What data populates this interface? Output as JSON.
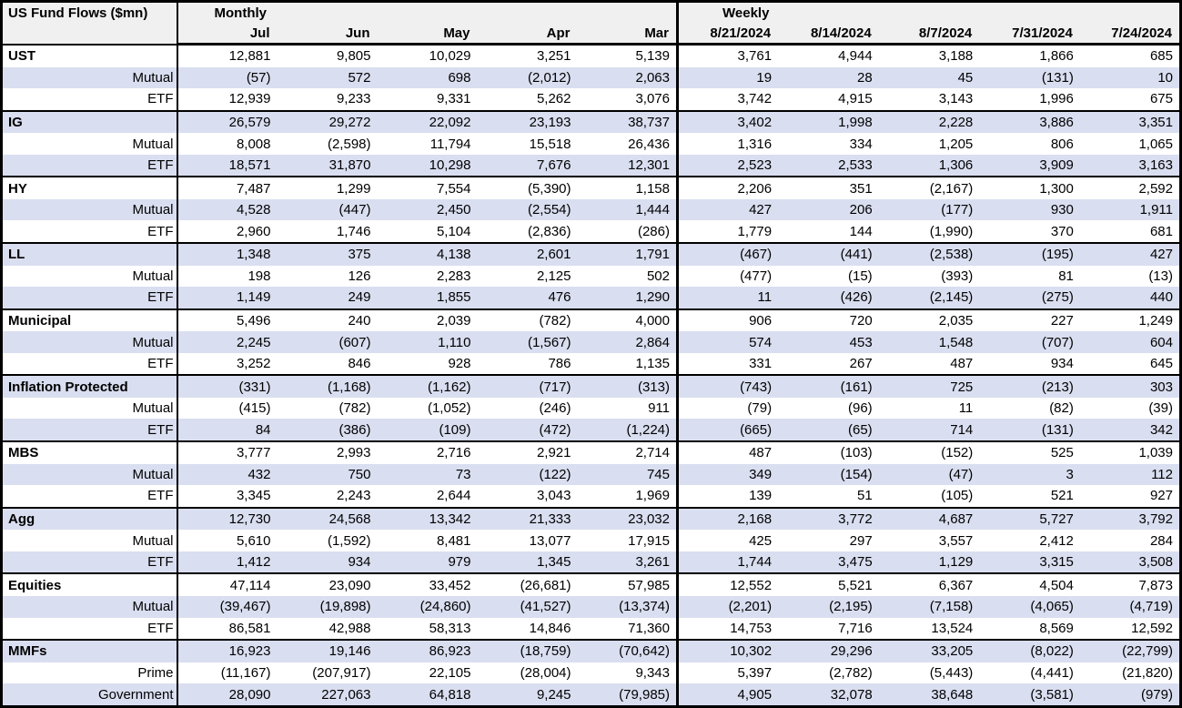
{
  "title": "US Fund Flows ($mn)",
  "colors": {
    "row_shade": "#d9def0",
    "header_bg": "#f0f0f0",
    "border": "#000000"
  },
  "header": {
    "monthly_label": "Monthly",
    "weekly_label": "Weekly",
    "monthly_columns": [
      "Jul",
      "Jun",
      "May",
      "Apr",
      "Mar"
    ],
    "weekly_columns": [
      "8/21/2024",
      "8/14/2024",
      "8/7/2024",
      "7/31/2024",
      "7/24/2024"
    ]
  },
  "chart_data": {
    "type": "table",
    "title": "US Fund Flows ($mn)",
    "column_groups": [
      "Monthly",
      "Weekly"
    ],
    "columns": [
      "Jul",
      "Jun",
      "May",
      "Apr",
      "Mar",
      "8/21/2024",
      "8/14/2024",
      "8/7/2024",
      "7/31/2024",
      "7/24/2024"
    ]
  },
  "groups": [
    {
      "name": "UST",
      "monthly": [
        "12,881",
        "9,805",
        "10,029",
        "3,251",
        "5,139"
      ],
      "weekly": [
        "3,761",
        "4,944",
        "3,188",
        "1,866",
        "685"
      ],
      "subrows": [
        {
          "label": "Mutual",
          "monthly": [
            "(57)",
            "572",
            "698",
            "(2,012)",
            "2,063"
          ],
          "weekly": [
            "19",
            "28",
            "45",
            "(131)",
            "10"
          ]
        },
        {
          "label": "ETF",
          "monthly": [
            "12,939",
            "9,233",
            "9,331",
            "5,262",
            "3,076"
          ],
          "weekly": [
            "3,742",
            "4,915",
            "3,143",
            "1,996",
            "675"
          ]
        }
      ]
    },
    {
      "name": "IG",
      "monthly": [
        "26,579",
        "29,272",
        "22,092",
        "23,193",
        "38,737"
      ],
      "weekly": [
        "3,402",
        "1,998",
        "2,228",
        "3,886",
        "3,351"
      ],
      "subrows": [
        {
          "label": "Mutual",
          "monthly": [
            "8,008",
            "(2,598)",
            "11,794",
            "15,518",
            "26,436"
          ],
          "weekly": [
            "1,316",
            "334",
            "1,205",
            "806",
            "1,065"
          ]
        },
        {
          "label": "ETF",
          "monthly": [
            "18,571",
            "31,870",
            "10,298",
            "7,676",
            "12,301"
          ],
          "weekly": [
            "2,523",
            "2,533",
            "1,306",
            "3,909",
            "3,163"
          ]
        }
      ]
    },
    {
      "name": "HY",
      "monthly": [
        "7,487",
        "1,299",
        "7,554",
        "(5,390)",
        "1,158"
      ],
      "weekly": [
        "2,206",
        "351",
        "(2,167)",
        "1,300",
        "2,592"
      ],
      "subrows": [
        {
          "label": "Mutual",
          "monthly": [
            "4,528",
            "(447)",
            "2,450",
            "(2,554)",
            "1,444"
          ],
          "weekly": [
            "427",
            "206",
            "(177)",
            "930",
            "1,911"
          ]
        },
        {
          "label": "ETF",
          "monthly": [
            "2,960",
            "1,746",
            "5,104",
            "(2,836)",
            "(286)"
          ],
          "weekly": [
            "1,779",
            "144",
            "(1,990)",
            "370",
            "681"
          ]
        }
      ]
    },
    {
      "name": "LL",
      "monthly": [
        "1,348",
        "375",
        "4,138",
        "2,601",
        "1,791"
      ],
      "weekly": [
        "(467)",
        "(441)",
        "(2,538)",
        "(195)",
        "427"
      ],
      "subrows": [
        {
          "label": "Mutual",
          "monthly": [
            "198",
            "126",
            "2,283",
            "2,125",
            "502"
          ],
          "weekly": [
            "(477)",
            "(15)",
            "(393)",
            "81",
            "(13)"
          ]
        },
        {
          "label": "ETF",
          "monthly": [
            "1,149",
            "249",
            "1,855",
            "476",
            "1,290"
          ],
          "weekly": [
            "11",
            "(426)",
            "(2,145)",
            "(275)",
            "440"
          ]
        }
      ]
    },
    {
      "name": "Municipal",
      "monthly": [
        "5,496",
        "240",
        "2,039",
        "(782)",
        "4,000"
      ],
      "weekly": [
        "906",
        "720",
        "2,035",
        "227",
        "1,249"
      ],
      "subrows": [
        {
          "label": "Mutual",
          "monthly": [
            "2,245",
            "(607)",
            "1,110",
            "(1,567)",
            "2,864"
          ],
          "weekly": [
            "574",
            "453",
            "1,548",
            "(707)",
            "604"
          ]
        },
        {
          "label": "ETF",
          "monthly": [
            "3,252",
            "846",
            "928",
            "786",
            "1,135"
          ],
          "weekly": [
            "331",
            "267",
            "487",
            "934",
            "645"
          ]
        }
      ]
    },
    {
      "name": "Inflation Protected",
      "monthly": [
        "(331)",
        "(1,168)",
        "(1,162)",
        "(717)",
        "(313)"
      ],
      "weekly": [
        "(743)",
        "(161)",
        "725",
        "(213)",
        "303"
      ],
      "subrows": [
        {
          "label": "Mutual",
          "monthly": [
            "(415)",
            "(782)",
            "(1,052)",
            "(246)",
            "911"
          ],
          "weekly": [
            "(79)",
            "(96)",
            "11",
            "(82)",
            "(39)"
          ]
        },
        {
          "label": "ETF",
          "monthly": [
            "84",
            "(386)",
            "(109)",
            "(472)",
            "(1,224)"
          ],
          "weekly": [
            "(665)",
            "(65)",
            "714",
            "(131)",
            "342"
          ]
        }
      ]
    },
    {
      "name": "MBS",
      "monthly": [
        "3,777",
        "2,993",
        "2,716",
        "2,921",
        "2,714"
      ],
      "weekly": [
        "487",
        "(103)",
        "(152)",
        "525",
        "1,039"
      ],
      "subrows": [
        {
          "label": "Mutual",
          "monthly": [
            "432",
            "750",
            "73",
            "(122)",
            "745"
          ],
          "weekly": [
            "349",
            "(154)",
            "(47)",
            "3",
            "112"
          ]
        },
        {
          "label": "ETF",
          "monthly": [
            "3,345",
            "2,243",
            "2,644",
            "3,043",
            "1,969"
          ],
          "weekly": [
            "139",
            "51",
            "(105)",
            "521",
            "927"
          ]
        }
      ]
    },
    {
      "name": "Agg",
      "monthly": [
        "12,730",
        "24,568",
        "13,342",
        "21,333",
        "23,032"
      ],
      "weekly": [
        "2,168",
        "3,772",
        "4,687",
        "5,727",
        "3,792"
      ],
      "subrows": [
        {
          "label": "Mutual",
          "monthly": [
            "5,610",
            "(1,592)",
            "8,481",
            "13,077",
            "17,915"
          ],
          "weekly": [
            "425",
            "297",
            "3,557",
            "2,412",
            "284"
          ]
        },
        {
          "label": "ETF",
          "monthly": [
            "1,412",
            "934",
            "979",
            "1,345",
            "3,261"
          ],
          "weekly": [
            "1,744",
            "3,475",
            "1,129",
            "3,315",
            "3,508"
          ]
        }
      ]
    },
    {
      "name": "Equities",
      "monthly": [
        "47,114",
        "23,090",
        "33,452",
        "(26,681)",
        "57,985"
      ],
      "weekly": [
        "12,552",
        "5,521",
        "6,367",
        "4,504",
        "7,873"
      ],
      "subrows": [
        {
          "label": "Mutual",
          "monthly": [
            "(39,467)",
            "(19,898)",
            "(24,860)",
            "(41,527)",
            "(13,374)"
          ],
          "weekly": [
            "(2,201)",
            "(2,195)",
            "(7,158)",
            "(4,065)",
            "(4,719)"
          ]
        },
        {
          "label": "ETF",
          "monthly": [
            "86,581",
            "42,988",
            "58,313",
            "14,846",
            "71,360"
          ],
          "weekly": [
            "14,753",
            "7,716",
            "13,524",
            "8,569",
            "12,592"
          ]
        }
      ]
    },
    {
      "name": "MMFs",
      "monthly": [
        "16,923",
        "19,146",
        "86,923",
        "(18,759)",
        "(70,642)"
      ],
      "weekly": [
        "10,302",
        "29,296",
        "33,205",
        "(8,022)",
        "(22,799)"
      ],
      "subrows": [
        {
          "label": "Prime",
          "monthly": [
            "(11,167)",
            "(207,917)",
            "22,105",
            "(28,004)",
            "9,343"
          ],
          "weekly": [
            "5,397",
            "(2,782)",
            "(5,443)",
            "(4,441)",
            "(21,820)"
          ]
        },
        {
          "label": "Government",
          "monthly": [
            "28,090",
            "227,063",
            "64,818",
            "9,245",
            "(79,985)"
          ],
          "weekly": [
            "4,905",
            "32,078",
            "38,648",
            "(3,581)",
            "(979)"
          ]
        }
      ]
    }
  ]
}
